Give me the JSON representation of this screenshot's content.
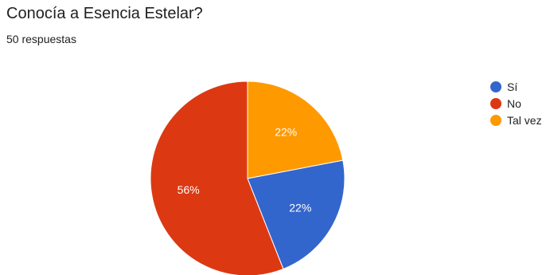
{
  "title": "Conocía a Esencia Estelar?",
  "subtitle": "50 respuestas",
  "chart_data": {
    "type": "pie",
    "title": "Conocía a Esencia Estelar?",
    "total_responses": 50,
    "labels": [
      "Sí",
      "No",
      "Tal vez"
    ],
    "values": [
      22,
      56,
      22
    ],
    "value_labels": [
      "22%",
      "56%",
      "22%"
    ],
    "colors": [
      "#3366cc",
      "#dc3912",
      "#ff9900"
    ],
    "legend_position": "right"
  }
}
